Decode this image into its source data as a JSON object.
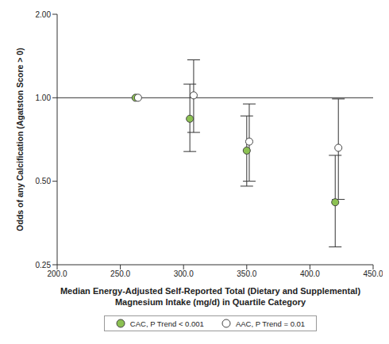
{
  "chart_data": {
    "type": "scatter",
    "x_label": [
      "Median Energy-Adjusted Self-Reported Total (Dietary and Supplemental)",
      "Magnesium Intake (mg/d) in Quartile Category"
    ],
    "y_label": "Odds of any Calcification (Agatston Score > 0)",
    "xlim": [
      200,
      450
    ],
    "xticks": [
      {
        "value": 200,
        "label": "200.0"
      },
      {
        "value": 250,
        "label": "250.0"
      },
      {
        "value": 300,
        "label": "300.0"
      },
      {
        "value": 350,
        "label": "350.0"
      },
      {
        "value": 400,
        "label": "400.0"
      },
      {
        "value": 450,
        "label": "450.0"
      }
    ],
    "ylim": [
      0.25,
      2
    ],
    "yticks": [
      {
        "value": 0.25,
        "label": "0.25"
      },
      {
        "value": 0.5,
        "label": "0.50"
      },
      {
        "value": 1,
        "label": "1.00"
      },
      {
        "value": 2,
        "label": "2.00"
      }
    ],
    "log": "y",
    "grid": false,
    "legend": "bottom",
    "reference_line": 1,
    "series": [
      {
        "name": "CAC, P Trend < 0.001",
        "color": "#8cc152",
        "marker": "circle",
        "x": [
          262,
          305,
          350,
          420
        ],
        "values": [
          1,
          0.84,
          0.645,
          0.42
        ],
        "ci_lower": [
          null,
          0.64,
          0.48,
          0.29
        ],
        "ci_upper": [
          null,
          1.12,
          0.86,
          0.62
        ]
      },
      {
        "name": "AAC, P Trend = 0.01",
        "color": "#ffffff",
        "marker": "circle",
        "x": [
          264,
          308,
          352,
          422.5
        ],
        "values": [
          1,
          1.02,
          0.695,
          0.66
        ],
        "ci_lower": [
          null,
          0.75,
          0.5,
          0.43
        ],
        "ci_upper": [
          null,
          1.37,
          0.95,
          0.99
        ]
      }
    ]
  }
}
